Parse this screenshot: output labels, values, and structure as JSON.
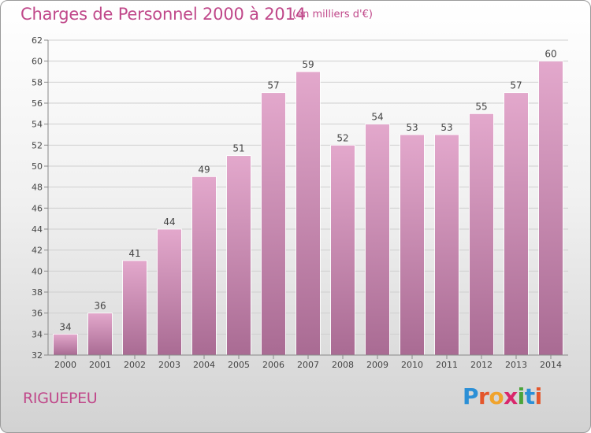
{
  "header": {
    "title": "Charges de Personnel 2000 à 2014",
    "subtitle": "(en milliers d'€)"
  },
  "footer": {
    "town": "RIGUEPEU",
    "logo_letters": [
      "P",
      "r",
      "o",
      "x",
      "i",
      "t",
      "i"
    ],
    "logo_colors": [
      "#2b8fd6",
      "#e4562b",
      "#f0a32c",
      "#d9266b",
      "#4aa43a",
      "#2b8fd6",
      "#e4562b"
    ]
  },
  "chart_data": {
    "type": "bar",
    "title": "Charges de Personnel 2000 à 2014",
    "subtitle": "(en milliers d'€)",
    "categories": [
      "2000",
      "2001",
      "2002",
      "2003",
      "2004",
      "2005",
      "2006",
      "2007",
      "2008",
      "2009",
      "2010",
      "2011",
      "2012",
      "2013",
      "2014"
    ],
    "values": [
      34,
      36,
      41,
      44,
      49,
      51,
      57,
      59,
      52,
      54,
      53,
      53,
      55,
      57,
      60
    ],
    "ylim": [
      32,
      62
    ],
    "yticks": [
      32,
      34,
      36,
      38,
      40,
      42,
      44,
      46,
      48,
      50,
      52,
      54,
      56,
      58,
      60,
      62
    ],
    "grid": true,
    "legend": "none",
    "bar_color_top": "#e3a8cc",
    "bar_color_bottom": "#a96b93",
    "grid_color": "#cfcfcf"
  }
}
